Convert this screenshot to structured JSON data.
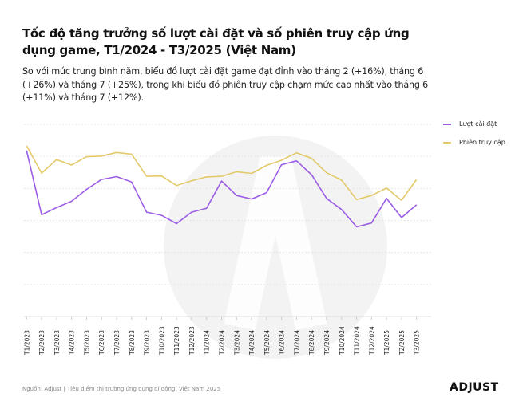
{
  "title": "Tốc độ tăng trưởng số lượt cài đặt và số phiên truy cập ứng dụng game, T1/2024 - T3/2025 (Việt Nam)",
  "subtitle": "So với mức trung bình năm, biểu đồ lượt cài đặt game đạt đỉnh vào tháng 2 (+16%), tháng 6 (+26%) và tháng 7 (+25%), trong khi biểu đồ phiên truy cập chạm mức cao nhất vào tháng 6 (+11%) và tháng 7 (+12%).",
  "source": "Nguồn: Adjust | Tiêu điểm thị trường ứng dụng di động: Việt Nam 2025",
  "logo": "ADJUST",
  "chart_data": {
    "type": "line",
    "title": "",
    "xlabel": "",
    "ylabel": "",
    "y_tick_labels_shown": false,
    "grid": true,
    "legend": "right",
    "ylim": [
      0,
      60
    ],
    "categories": [
      "T1/2023",
      "T2/2023",
      "T3/2023",
      "T4/2023",
      "T5/2023",
      "T6/2023",
      "T7/2023",
      "T8/2023",
      "T9/2023",
      "T10/2023",
      "T11/2023",
      "T12/2023",
      "T1/2024",
      "T2/2024",
      "T3/2024",
      "T4/2024",
      "T5/2024",
      "T6/2024",
      "T7/2024",
      "T8/2024",
      "T9/2024",
      "T10/2024",
      "T11/2024",
      "T12/2024",
      "T1/2025",
      "T2/2025",
      "T3/2025"
    ],
    "series": [
      {
        "name": "Lượt cài đặt",
        "color": "#9b5de5",
        "values": [
          51.8,
          31.8,
          34,
          36,
          39.7,
          42.8,
          43.7,
          42,
          32.6,
          31.6,
          29,
          32.6,
          33.8,
          42.3,
          37.8,
          36.7,
          38.7,
          47.4,
          48.6,
          44.3,
          36.9,
          33.4,
          28,
          29.2,
          36.9,
          30.9,
          34.9
        ]
      },
      {
        "name": "Phiên truy cập",
        "color": "#e3c96a",
        "values": [
          53.3,
          44.8,
          49,
          47.3,
          49.9,
          50.1,
          51.2,
          50.7,
          43.8,
          43.9,
          40.9,
          42.4,
          43.6,
          43.8,
          45.2,
          44.7,
          47.2,
          48.8,
          51.1,
          49.4,
          44.9,
          42.6,
          36.5,
          37.8,
          40.1,
          36.3,
          42.8
        ]
      }
    ]
  }
}
